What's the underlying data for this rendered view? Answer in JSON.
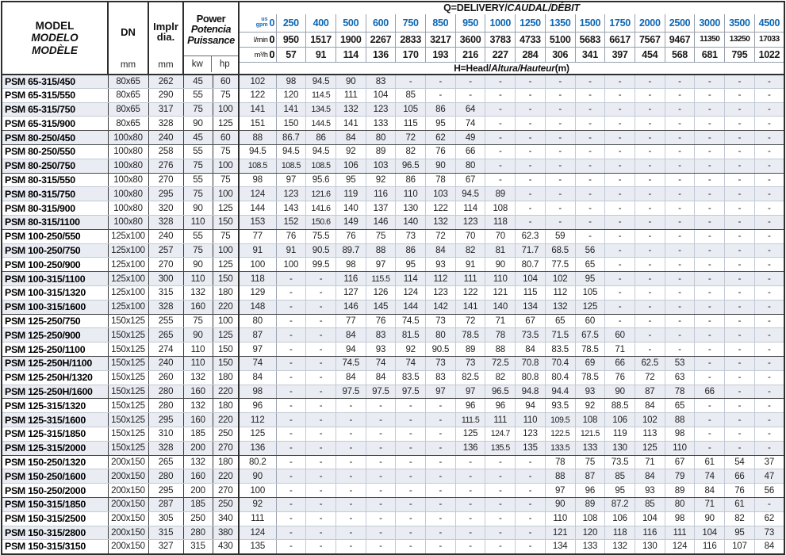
{
  "table": {
    "left_header": {
      "model_lines": [
        "MODEL",
        "MODELO",
        "MODÈLE"
      ],
      "dn_label": "DN",
      "dn_unit": "mm",
      "impeller_line1": "Implr",
      "impeller_line2": "dia.",
      "impeller_unit": "mm",
      "power_lines": [
        "Power",
        "Potencia",
        "Puissance"
      ],
      "power_unit_kw": "kw",
      "power_unit_hp": "hp"
    },
    "q_header": {
      "title_plain": "Q=DELIVERY/",
      "title_italic": "CAUDAL/DÉBIT",
      "h_title_plain": "H=Head/",
      "h_title_italic": "Altura/Hauteur",
      "h_title_suffix": "(m)",
      "flow_rows": [
        {
          "unit_top": "us",
          "unit_bottom": "gpm",
          "zero": "0",
          "style": "blue",
          "values": [
            "250",
            "400",
            "500",
            "600",
            "750",
            "850",
            "950",
            "1000",
            "1250",
            "1350",
            "1500",
            "1750",
            "2000",
            "2500",
            "3000",
            "3500",
            "4500"
          ]
        },
        {
          "unit": "l/min",
          "zero": "0",
          "style": "black",
          "values": [
            "950",
            "1517",
            "1900",
            "2267",
            "2833",
            "3217",
            "3600",
            "3783",
            "4733",
            "5100",
            "5683",
            "6617",
            "7567",
            "9467",
            "11350",
            "13250",
            "17033"
          ]
        },
        {
          "unit": "m³/h",
          "zero": "0",
          "style": "black",
          "values": [
            "57",
            "91",
            "114",
            "136",
            "170",
            "193",
            "216",
            "227",
            "284",
            "306",
            "341",
            "397",
            "454",
            "568",
            "681",
            "795",
            "1022"
          ]
        }
      ]
    },
    "rows": [
      {
        "model": "PSM 65-315/450",
        "dn": "80x65",
        "dia": "262",
        "kw": "45",
        "hp": "60",
        "head": [
          "102",
          "98",
          "94.5",
          "90",
          "83",
          "-",
          "-",
          "-",
          "-",
          "-",
          "-",
          "-",
          "-",
          "-",
          "-",
          "-",
          "-",
          "-"
        ],
        "group_end": false
      },
      {
        "model": "PSM 65-315/550",
        "dn": "80x65",
        "dia": "290",
        "kw": "55",
        "hp": "75",
        "head": [
          "122",
          "120",
          "114.5",
          "111",
          "104",
          "85",
          "-",
          "-",
          "-",
          "-",
          "-",
          "-",
          "-",
          "-",
          "-",
          "-",
          "-",
          "-"
        ],
        "group_end": false
      },
      {
        "model": "PSM 65-315/750",
        "dn": "80x65",
        "dia": "317",
        "kw": "75",
        "hp": "100",
        "head": [
          "141",
          "141",
          "134.5",
          "132",
          "123",
          "105",
          "86",
          "64",
          "-",
          "-",
          "-",
          "-",
          "-",
          "-",
          "-",
          "-",
          "-",
          "-"
        ],
        "group_end": false
      },
      {
        "model": "PSM 65-315/900",
        "dn": "80x65",
        "dia": "328",
        "kw": "90",
        "hp": "125",
        "head": [
          "151",
          "150",
          "144.5",
          "141",
          "133",
          "115",
          "95",
          "74",
          "-",
          "-",
          "-",
          "-",
          "-",
          "-",
          "-",
          "-",
          "-",
          "-"
        ],
        "group_end": true
      },
      {
        "model": "PSM 80-250/450",
        "dn": "100x80",
        "dia": "240",
        "kw": "45",
        "hp": "60",
        "head": [
          "88",
          "86.7",
          "86",
          "84",
          "80",
          "72",
          "62",
          "49",
          "-",
          "-",
          "-",
          "-",
          "-",
          "-",
          "-",
          "-",
          "-",
          "-"
        ],
        "group_end": true
      },
      {
        "model": "PSM 80-250/550",
        "dn": "100x80",
        "dia": "258",
        "kw": "55",
        "hp": "75",
        "head": [
          "94.5",
          "94.5",
          "94.5",
          "92",
          "89",
          "82",
          "76",
          "66",
          "-",
          "-",
          "-",
          "-",
          "-",
          "-",
          "-",
          "-",
          "-",
          "-"
        ],
        "group_end": false
      },
      {
        "model": "PSM 80-250/750",
        "dn": "100x80",
        "dia": "276",
        "kw": "75",
        "hp": "100",
        "head": [
          "108.5",
          "108.5",
          "108.5",
          "106",
          "103",
          "96.5",
          "90",
          "80",
          "-",
          "-",
          "-",
          "-",
          "-",
          "-",
          "-",
          "-",
          "-",
          "-"
        ],
        "group_end": true
      },
      {
        "model": "PSM 80-315/550",
        "dn": "100x80",
        "dia": "270",
        "kw": "55",
        "hp": "75",
        "head": [
          "98",
          "97",
          "95.6",
          "95",
          "92",
          "86",
          "78",
          "67",
          "-",
          "-",
          "-",
          "-",
          "-",
          "-",
          "-",
          "-",
          "-",
          "-"
        ],
        "group_end": false
      },
      {
        "model": "PSM 80-315/750",
        "dn": "100x80",
        "dia": "295",
        "kw": "75",
        "hp": "100",
        "head": [
          "124",
          "123",
          "121.6",
          "119",
          "116",
          "110",
          "103",
          "94.5",
          "89",
          "-",
          "-",
          "-",
          "-",
          "-",
          "-",
          "-",
          "-",
          "-"
        ],
        "group_end": false
      },
      {
        "model": "PSM 80-315/900",
        "dn": "100x80",
        "dia": "320",
        "kw": "90",
        "hp": "125",
        "head": [
          "144",
          "143",
          "141.6",
          "140",
          "137",
          "130",
          "122",
          "114",
          "108",
          "-",
          "-",
          "-",
          "-",
          "-",
          "-",
          "-",
          "-",
          "-"
        ],
        "group_end": false
      },
      {
        "model": "PSM 80-315/1100",
        "dn": "100x80",
        "dia": "328",
        "kw": "110",
        "hp": "150",
        "head": [
          "153",
          "152",
          "150.6",
          "149",
          "146",
          "140",
          "132",
          "123",
          "118",
          "-",
          "-",
          "-",
          "-",
          "-",
          "-",
          "-",
          "-",
          "-"
        ],
        "group_end": true
      },
      {
        "model": "PSM 100-250/550",
        "dn": "125x100",
        "dia": "240",
        "kw": "55",
        "hp": "75",
        "head": [
          "77",
          "76",
          "75.5",
          "76",
          "75",
          "73",
          "72",
          "70",
          "70",
          "62.3",
          "59",
          "-",
          "-",
          "-",
          "-",
          "-",
          "-",
          "-"
        ],
        "group_end": false
      },
      {
        "model": "PSM 100-250/750",
        "dn": "125x100",
        "dia": "257",
        "kw": "75",
        "hp": "100",
        "head": [
          "91",
          "91",
          "90.5",
          "89.7",
          "88",
          "86",
          "84",
          "82",
          "81",
          "71.7",
          "68.5",
          "56",
          "-",
          "-",
          "-",
          "-",
          "-",
          "-"
        ],
        "group_end": false
      },
      {
        "model": "PSM 100-250/900",
        "dn": "125x100",
        "dia": "270",
        "kw": "90",
        "hp": "125",
        "head": [
          "100",
          "100",
          "99.5",
          "98",
          "97",
          "95",
          "93",
          "91",
          "90",
          "80.7",
          "77.5",
          "65",
          "-",
          "-",
          "-",
          "-",
          "-",
          "-"
        ],
        "group_end": true
      },
      {
        "model": "PSM 100-315/1100",
        "dn": "125x100",
        "dia": "300",
        "kw": "110",
        "hp": "150",
        "head": [
          "118",
          "-",
          "-",
          "116",
          "115.5",
          "114",
          "112",
          "111",
          "110",
          "104",
          "102",
          "95",
          "-",
          "-",
          "-",
          "-",
          "-",
          "-"
        ],
        "group_end": false
      },
      {
        "model": "PSM 100-315/1320",
        "dn": "125x100",
        "dia": "315",
        "kw": "132",
        "hp": "180",
        "head": [
          "129",
          "-",
          "-",
          "127",
          "126",
          "124",
          "123",
          "122",
          "121",
          "115",
          "112",
          "105",
          "-",
          "-",
          "-",
          "-",
          "-",
          "-"
        ],
        "group_end": false
      },
      {
        "model": "PSM 100-315/1600",
        "dn": "125x100",
        "dia": "328",
        "kw": "160",
        "hp": "220",
        "head": [
          "148",
          "-",
          "-",
          "146",
          "145",
          "144",
          "142",
          "141",
          "140",
          "134",
          "132",
          "125",
          "-",
          "-",
          "-",
          "-",
          "-",
          "-"
        ],
        "group_end": true
      },
      {
        "model": "PSM 125-250/750",
        "dn": "150x125",
        "dia": "255",
        "kw": "75",
        "hp": "100",
        "head": [
          "80",
          "-",
          "-",
          "77",
          "76",
          "74.5",
          "73",
          "72",
          "71",
          "67",
          "65",
          "60",
          "-",
          "-",
          "-",
          "-",
          "-",
          "-"
        ],
        "group_end": false
      },
      {
        "model": "PSM 125-250/900",
        "dn": "150x125",
        "dia": "265",
        "kw": "90",
        "hp": "125",
        "head": [
          "87",
          "-",
          "-",
          "84",
          "83",
          "81.5",
          "80",
          "78.5",
          "78",
          "73.5",
          "71.5",
          "67.5",
          "60",
          "-",
          "-",
          "-",
          "-",
          "-"
        ],
        "group_end": false
      },
      {
        "model": "PSM 125-250/1100",
        "dn": "150x125",
        "dia": "274",
        "kw": "110",
        "hp": "150",
        "head": [
          "97",
          "-",
          "-",
          "94",
          "93",
          "92",
          "90.5",
          "89",
          "88",
          "84",
          "83.5",
          "78.5",
          "71",
          "-",
          "-",
          "-",
          "-",
          "-"
        ],
        "group_end": true
      },
      {
        "model": "PSM 125-250H/1100",
        "dn": "150x125",
        "dia": "240",
        "kw": "110",
        "hp": "150",
        "head": [
          "74",
          "-",
          "-",
          "74.5",
          "74",
          "74",
          "73",
          "73",
          "72.5",
          "70.8",
          "70.4",
          "69",
          "66",
          "62.5",
          "53",
          "-",
          "-",
          "-"
        ],
        "group_end": false
      },
      {
        "model": "PSM 125-250H/1320",
        "dn": "150x125",
        "dia": "260",
        "kw": "132",
        "hp": "180",
        "head": [
          "84",
          "-",
          "-",
          "84",
          "84",
          "83.5",
          "83",
          "82.5",
          "82",
          "80.8",
          "80.4",
          "78.5",
          "76",
          "72",
          "63",
          "-",
          "-",
          "-"
        ],
        "group_end": false
      },
      {
        "model": "PSM 125-250H/1600",
        "dn": "150x125",
        "dia": "280",
        "kw": "160",
        "hp": "220",
        "head": [
          "98",
          "-",
          "-",
          "97.5",
          "97.5",
          "97.5",
          "97",
          "97",
          "96.5",
          "94.8",
          "94.4",
          "93",
          "90",
          "87",
          "78",
          "66",
          "-",
          "-"
        ],
        "group_end": true
      },
      {
        "model": "PSM 125-315/1320",
        "dn": "150x125",
        "dia": "280",
        "kw": "132",
        "hp": "180",
        "head": [
          "96",
          "-",
          "-",
          "-",
          "-",
          "-",
          "-",
          "96",
          "96",
          "94",
          "93.5",
          "92",
          "88.5",
          "84",
          "65",
          "-",
          "-",
          "-"
        ],
        "group_end": false
      },
      {
        "model": "PSM 125-315/1600",
        "dn": "150x125",
        "dia": "295",
        "kw": "160",
        "hp": "220",
        "head": [
          "112",
          "-",
          "-",
          "-",
          "-",
          "-",
          "-",
          "111.5",
          "111",
          "110",
          "109.5",
          "108",
          "106",
          "102",
          "88",
          "-",
          "-",
          "-"
        ],
        "group_end": false
      },
      {
        "model": "PSM 125-315/1850",
        "dn": "150x125",
        "dia": "310",
        "kw": "185",
        "hp": "250",
        "head": [
          "125",
          "-",
          "-",
          "-",
          "-",
          "-",
          "-",
          "125",
          "124.7",
          "123",
          "122.5",
          "121.5",
          "119",
          "113",
          "98",
          "-",
          "-",
          "-"
        ],
        "group_end": false
      },
      {
        "model": "PSM 125-315/2000",
        "dn": "150x125",
        "dia": "328",
        "kw": "200",
        "hp": "270",
        "head": [
          "136",
          "-",
          "-",
          "-",
          "-",
          "-",
          "-",
          "136",
          "135.5",
          "135",
          "133.5",
          "133",
          "130",
          "125",
          "110",
          "-",
          "-",
          "-"
        ],
        "group_end": true
      },
      {
        "model": "PSM 150-250/1320",
        "dn": "200x150",
        "dia": "265",
        "kw": "132",
        "hp": "180",
        "head": [
          "80.2",
          "-",
          "-",
          "-",
          "-",
          "-",
          "-",
          "-",
          "-",
          "-",
          "78",
          "75",
          "73.5",
          "71",
          "67",
          "61",
          "54",
          "37"
        ],
        "group_end": false
      },
      {
        "model": "PSM 150-250/1600",
        "dn": "200x150",
        "dia": "280",
        "kw": "160",
        "hp": "220",
        "head": [
          "90",
          "-",
          "-",
          "-",
          "-",
          "-",
          "-",
          "-",
          "-",
          "-",
          "88",
          "87",
          "85",
          "84",
          "79",
          "74",
          "66",
          "47"
        ],
        "group_end": false
      },
      {
        "model": "PSM 150-250/2000",
        "dn": "200x150",
        "dia": "295",
        "kw": "200",
        "hp": "270",
        "head": [
          "100",
          "-",
          "-",
          "-",
          "-",
          "-",
          "-",
          "-",
          "-",
          "-",
          "97",
          "96",
          "95",
          "93",
          "89",
          "84",
          "76",
          "56"
        ],
        "group_end": true
      },
      {
        "model": "PSM 150-315/1850",
        "dn": "200x150",
        "dia": "287",
        "kw": "185",
        "hp": "250",
        "head": [
          "92",
          "-",
          "-",
          "-",
          "-",
          "-",
          "-",
          "-",
          "-",
          "-",
          "90",
          "89",
          "87.2",
          "85",
          "80",
          "71",
          "61",
          "-"
        ],
        "group_end": false
      },
      {
        "model": "PSM 150-315/2500",
        "dn": "200x150",
        "dia": "305",
        "kw": "250",
        "hp": "340",
        "head": [
          "111",
          "-",
          "-",
          "-",
          "-",
          "-",
          "-",
          "-",
          "-",
          "-",
          "110",
          "108",
          "106",
          "104",
          "98",
          "90",
          "82",
          "62"
        ],
        "group_end": false
      },
      {
        "model": "PSM 150-315/2800",
        "dn": "200x150",
        "dia": "315",
        "kw": "280",
        "hp": "380",
        "head": [
          "124",
          "-",
          "-",
          "-",
          "-",
          "-",
          "-",
          "-",
          "-",
          "-",
          "121",
          "120",
          "118",
          "116",
          "111",
          "104",
          "95",
          "73"
        ],
        "group_end": false
      },
      {
        "model": "PSM 150-315/3150",
        "dn": "200x150",
        "dia": "327",
        "kw": "315",
        "hp": "430",
        "head": [
          "135",
          "-",
          "-",
          "-",
          "-",
          "-",
          "-",
          "-",
          "-",
          "-",
          "134",
          "133",
          "132",
          "130",
          "124",
          "116",
          "107",
          "84"
        ],
        "group_end": false
      }
    ]
  },
  "colors": {
    "accent_blue": "#0c66b3",
    "row_shade": "#e9ecf3",
    "grid_light": "#c3c9d4",
    "grid_dark": "#2e2e2e"
  }
}
